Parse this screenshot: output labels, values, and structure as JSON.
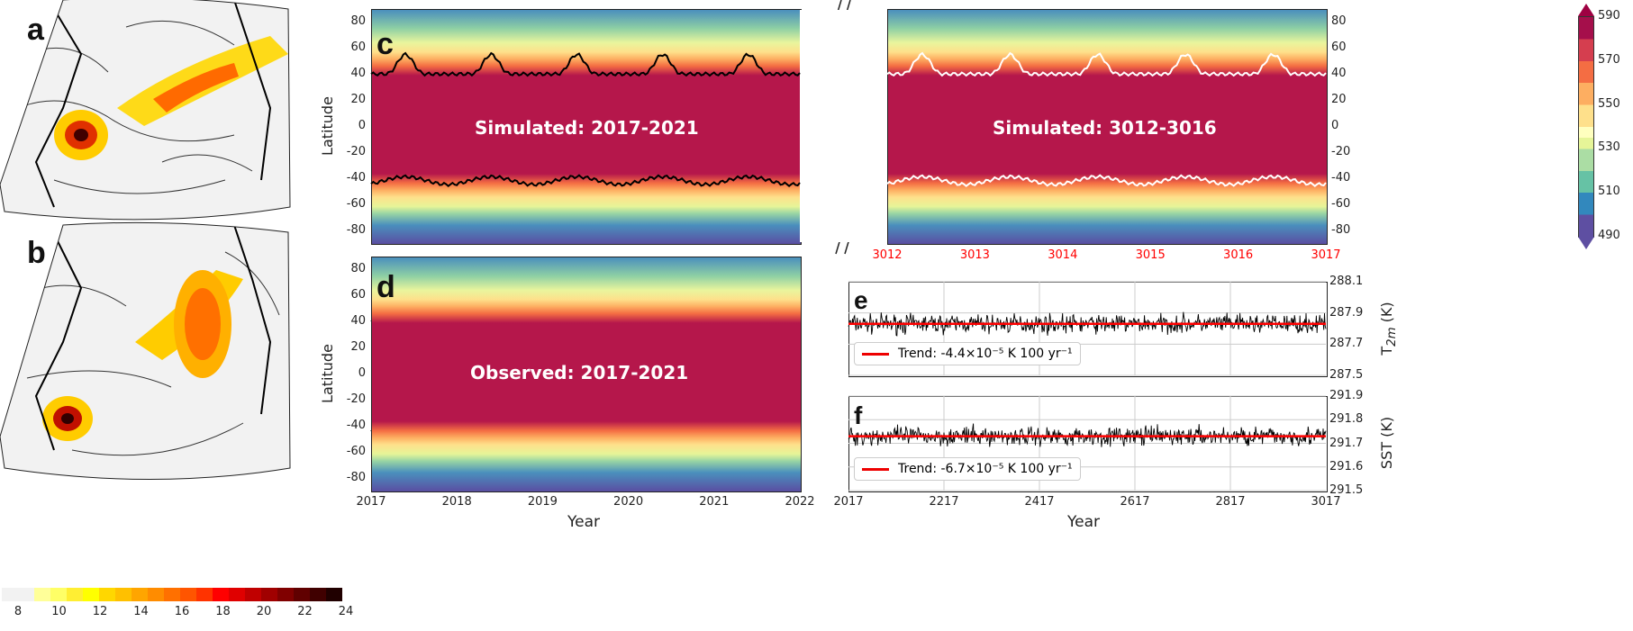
{
  "panels": {
    "a": "a",
    "b": "b",
    "c": "c",
    "d": "d",
    "e": "e",
    "f": "f"
  },
  "colors": {
    "trend": "#ff0000",
    "series": "#000000",
    "red_ticks": "#ff0000"
  },
  "chart_data": [
    {
      "panel": "a",
      "type": "heatmap",
      "colorbar": {
        "ticks": [
          "8",
          "10",
          "12",
          "14",
          "16",
          "18",
          "20",
          "22",
          "24"
        ],
        "range": [
          8,
          24
        ],
        "extend": "both",
        "cmap": "hot_r"
      }
    },
    {
      "panel": "b",
      "type": "heatmap",
      "colorbar_shared_with": "a"
    },
    {
      "panel": "c",
      "type": "heatmap",
      "title_left": "Simulated: 2017-2021",
      "title_right": "Simulated: 3012-3016",
      "ylabel": "Latitude",
      "yticks": [
        "80",
        "60",
        "40",
        "20",
        "0",
        "-20",
        "-40",
        "-60",
        "-80"
      ],
      "ylim": [
        -90,
        90
      ],
      "xticks_right": [
        "3012",
        "3013",
        "3014",
        "3015",
        "3016",
        "3017"
      ],
      "colorbar": {
        "ticks": [
          "590",
          "570",
          "550",
          "530",
          "510",
          "490"
        ],
        "range": [
          490,
          590
        ],
        "extend": "both",
        "cmap": "Spectral_r"
      }
    },
    {
      "panel": "d",
      "type": "heatmap",
      "title": "Observed: 2017-2021",
      "ylabel": "Latitude",
      "xlabel": "Year",
      "yticks": [
        "80",
        "60",
        "40",
        "20",
        "0",
        "-20",
        "-40",
        "-60",
        "-80"
      ],
      "xticks": [
        "2017",
        "2018",
        "2019",
        "2020",
        "2021",
        "2022"
      ],
      "ylim": [
        -90,
        90
      ],
      "xlim": [
        2017,
        2022
      ]
    },
    {
      "panel": "e",
      "type": "line",
      "ylabel_main": "T",
      "ylabel_sub": "2m",
      "ylabel_unit": " (K)",
      "yticks": [
        "288.1",
        "287.9",
        "287.7",
        "287.5"
      ],
      "ylim": [
        287.5,
        288.1
      ],
      "xlim": [
        2017,
        3017
      ],
      "mean": 287.83,
      "trend_value": 287.83,
      "legend": "Trend: -4.4×10⁻⁵ K 100 yr⁻¹",
      "grid": true
    },
    {
      "panel": "f",
      "type": "line",
      "ylabel": "SST (K)",
      "xlabel": "Year",
      "yticks": [
        "291.9",
        "291.8",
        "291.7",
        "291.6",
        "291.5"
      ],
      "xticks": [
        "2017",
        "2217",
        "2417",
        "2617",
        "2817",
        "3017"
      ],
      "ylim": [
        291.5,
        291.9
      ],
      "xlim": [
        2017,
        3017
      ],
      "mean": 291.73,
      "trend_value": 291.73,
      "legend": "Trend: -6.7×10⁻⁵ K 100 yr⁻¹",
      "grid": true
    }
  ]
}
